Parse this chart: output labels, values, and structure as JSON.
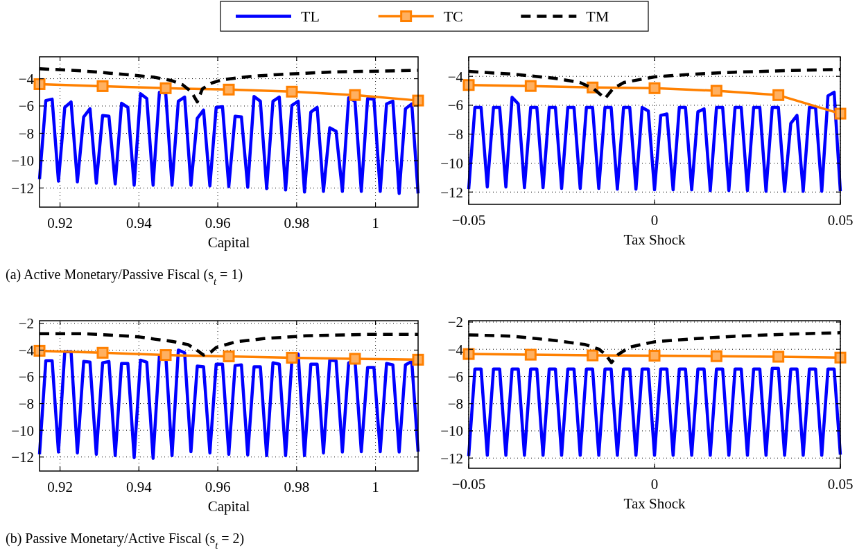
{
  "chart_data": [
    {
      "type": "line",
      "xlabel": "Capital",
      "xlim": [
        0.9148,
        1.0108
      ],
      "ylim": [
        -13.4,
        -2.4
      ],
      "xticks": [
        0.92,
        0.94,
        0.96,
        0.98,
        1
      ],
      "yticks": [
        -12,
        -10,
        -8,
        -6,
        -4
      ],
      "grid": true,
      "legend": "top",
      "annotations": [
        "(a) Active Monetary/Passive Fiscal (s$_{t}$ = 1)"
      ],
      "series": [
        {
          "name": "TL",
          "type": "line",
          "color": "#0000ff",
          "line_style": "solid",
          "marker": "none",
          "x": [
            0.9148,
            0.9164,
            0.918,
            0.9196,
            0.9212,
            0.9228,
            0.9244,
            0.926,
            0.9276,
            0.9292,
            0.9308,
            0.9324,
            0.934,
            0.9356,
            0.9372,
            0.9388,
            0.9404,
            0.942,
            0.9436,
            0.9452,
            0.9468,
            0.9484,
            0.95,
            0.9516,
            0.9532,
            0.9548,
            0.9564,
            0.958,
            0.9596,
            0.9612,
            0.9628,
            0.9644,
            0.966,
            0.9676,
            0.9692,
            0.9708,
            0.9724,
            0.974,
            0.9756,
            0.9772,
            0.9788,
            0.9804,
            0.982,
            0.9836,
            0.9852,
            0.9868,
            0.9884,
            0.99,
            0.9916,
            0.9932,
            0.9948,
            0.9964,
            0.998,
            0.9996,
            1.0012,
            1.0028,
            1.0044,
            1.006,
            1.0076,
            1.0092,
            1.0108
          ],
          "values": [
            -11.35,
            -5.6,
            -5.5,
            -11.5,
            -6.1,
            -5.7,
            -11.55,
            -6.8,
            -6.2,
            -11.65,
            -6.7,
            -6.75,
            -11.7,
            -5.8,
            -6.1,
            -11.8,
            -5.1,
            -5.45,
            -11.8,
            -5.0,
            -5.05,
            -11.8,
            -5.65,
            -5.35,
            -11.8,
            -6.9,
            -6.3,
            -11.85,
            -6.1,
            -6.05,
            -11.9,
            -6.75,
            -6.8,
            -11.95,
            -5.3,
            -5.65,
            -12.05,
            -5.65,
            -5.35,
            -12.15,
            -5.95,
            -5.65,
            -12.3,
            -6.45,
            -6.1,
            -12.25,
            -7.6,
            -7.85,
            -12.25,
            -5.4,
            -5.65,
            -12.25,
            -5.45,
            -5.5,
            -12.25,
            -5.85,
            -5.65,
            -12.4,
            -6.2,
            -5.85,
            -12.4
          ]
        },
        {
          "name": "TC",
          "type": "line",
          "color": "#ff8000",
          "line_style": "solid",
          "marker": "square",
          "x": [
            0.9148,
            0.9308,
            0.9468,
            0.9628,
            0.9788,
            0.9948,
            1.0108
          ],
          "values": [
            -4.4,
            -4.55,
            -4.7,
            -4.8,
            -4.95,
            -5.2,
            -5.6
          ]
        },
        {
          "name": "TM",
          "type": "line",
          "color": "#000000",
          "line_style": "dashed",
          "marker": "none",
          "x": [
            0.9148,
            0.9256,
            0.9327,
            0.9398,
            0.944,
            0.9483,
            0.9511,
            0.9533,
            0.9548,
            0.9561,
            0.9582,
            0.9611,
            0.9681,
            0.9752,
            0.9823,
            0.9894,
            0.9965,
            1.0108
          ],
          "values": [
            -3.27,
            -3.43,
            -3.6,
            -3.78,
            -3.9,
            -4.14,
            -4.45,
            -4.95,
            -5.7,
            -4.75,
            -4.35,
            -4.08,
            -3.84,
            -3.7,
            -3.6,
            -3.51,
            -3.47,
            -3.39
          ]
        }
      ]
    },
    {
      "type": "line",
      "xlabel": "Tax Shock",
      "xlim": [
        -0.05,
        0.05
      ],
      "ylim": [
        -12.85,
        -2.65
      ],
      "xticks": [
        -0.05,
        0,
        0.05
      ],
      "yticks": [
        -12,
        -10,
        -8,
        -6,
        -4
      ],
      "grid": true,
      "series": [
        {
          "type": "line",
          "color": "#0000ff",
          "line_style": "solid",
          "marker": "none",
          "x": [
            -0.05,
            -0.04833,
            -0.04667,
            -0.045,
            -0.04333,
            -0.04167,
            -0.04,
            -0.03833,
            -0.03667,
            -0.035,
            -0.03333,
            -0.03167,
            -0.03,
            -0.02833,
            -0.02667,
            -0.025,
            -0.02333,
            -0.02167,
            -0.02,
            -0.01833,
            -0.01667,
            -0.015,
            -0.01333,
            -0.01167,
            -0.01,
            -0.00833,
            -0.00667,
            -0.005,
            -0.00333,
            -0.00167,
            0,
            0.00167,
            0.00333,
            0.005,
            0.00667,
            0.00833,
            0.01,
            0.01167,
            0.01333,
            0.015,
            0.01667,
            0.01833,
            0.02,
            0.02167,
            0.02333,
            0.025,
            0.02667,
            0.02833,
            0.03,
            0.03167,
            0.03333,
            0.035,
            0.03667,
            0.03833,
            0.04,
            0.04167,
            0.04333,
            0.045,
            0.04667,
            0.04833,
            0.05
          ],
          "values": [
            -11.8,
            -6.15,
            -6.15,
            -11.65,
            -6.15,
            -6.15,
            -11.65,
            -5.45,
            -5.9,
            -11.7,
            -6.15,
            -6.15,
            -11.7,
            -6.15,
            -6.15,
            -11.75,
            -6.15,
            -6.15,
            -11.75,
            -6.15,
            -6.15,
            -11.75,
            -6.15,
            -6.15,
            -11.8,
            -6.15,
            -6.15,
            -11.8,
            -6.15,
            -6.4,
            -11.85,
            -6.7,
            -6.6,
            -11.85,
            -6.15,
            -6.15,
            -11.85,
            -6.45,
            -6.25,
            -11.9,
            -6.15,
            -6.15,
            -11.9,
            -6.15,
            -6.15,
            -11.9,
            -6.15,
            -6.15,
            -11.95,
            -6.15,
            -6.15,
            -11.95,
            -7.25,
            -6.7,
            -11.95,
            -6.15,
            -6.15,
            -11.95,
            -5.35,
            -5.1,
            -11.95
          ]
        },
        {
          "type": "line",
          "color": "#ff8000",
          "line_style": "solid",
          "marker": "square",
          "x": [
            -0.05,
            -0.03333,
            -0.01667,
            0,
            0.01667,
            0.03333,
            0.05
          ],
          "values": [
            -4.6,
            -4.67,
            -4.77,
            -4.82,
            -5.0,
            -5.3,
            -6.58
          ]
        },
        {
          "type": "line",
          "color": "#000000",
          "line_style": "dashed",
          "marker": "none",
          "x": [
            -0.05,
            -0.0381,
            -0.0269,
            -0.0201,
            -0.0164,
            -0.0133,
            -0.0112,
            -0.0082,
            0,
            0.0104,
            0.0216,
            0.0366,
            0.05
          ],
          "values": [
            -3.66,
            -3.85,
            -4.13,
            -4.42,
            -4.86,
            -5.53,
            -4.86,
            -4.42,
            -4.04,
            -3.85,
            -3.71,
            -3.6,
            -3.52
          ]
        }
      ]
    },
    {
      "type": "line",
      "xlabel": "Capital",
      "xlim": [
        0.9148,
        1.0108
      ],
      "ylim": [
        -13.05,
        -1.8
      ],
      "xticks": [
        0.92,
        0.94,
        0.96,
        0.98,
        1
      ],
      "yticks": [
        -12,
        -10,
        -8,
        -6,
        -4,
        -2
      ],
      "grid": true,
      "annotations": [
        "(b) Passive Monetary/Active Fiscal (s$_{t}$ = 2)"
      ],
      "series": [
        {
          "type": "line",
          "color": "#0000ff",
          "line_style": "solid",
          "marker": "none",
          "x": [
            0.9148,
            0.9164,
            0.918,
            0.9196,
            0.9212,
            0.9228,
            0.9244,
            0.926,
            0.9276,
            0.9292,
            0.9308,
            0.9324,
            0.934,
            0.9356,
            0.9372,
            0.9388,
            0.9404,
            0.942,
            0.9436,
            0.9452,
            0.9468,
            0.9484,
            0.95,
            0.9516,
            0.9532,
            0.9548,
            0.9564,
            0.958,
            0.9596,
            0.9612,
            0.9628,
            0.9644,
            0.966,
            0.9676,
            0.9692,
            0.9708,
            0.9724,
            0.974,
            0.9756,
            0.9772,
            0.9788,
            0.9804,
            0.982,
            0.9836,
            0.9852,
            0.9868,
            0.9884,
            0.99,
            0.9916,
            0.9932,
            0.9948,
            0.9964,
            0.998,
            0.9996,
            1.0012,
            1.0028,
            1.0044,
            1.006,
            1.0076,
            1.0092,
            1.0108
          ],
          "values": [
            -11.8,
            -4.8,
            -4.8,
            -11.63,
            -4.12,
            -4.12,
            -11.7,
            -4.85,
            -4.9,
            -11.8,
            -4.95,
            -4.85,
            -11.9,
            -5.0,
            -5.0,
            -12.05,
            -4.75,
            -4.9,
            -12.1,
            -4.43,
            -4.32,
            -11.9,
            -4.0,
            -4.2,
            -11.6,
            -5.2,
            -5.25,
            -11.7,
            -5.05,
            -5.05,
            -11.8,
            -5.15,
            -5.1,
            -11.85,
            -5.25,
            -5.25,
            -11.9,
            -4.95,
            -5.05,
            -11.9,
            -4.75,
            -4.3,
            -11.9,
            -5.05,
            -5.05,
            -11.7,
            -4.75,
            -4.8,
            -11.63,
            -4.95,
            -4.75,
            -11.6,
            -5.3,
            -5.3,
            -11.6,
            -5.0,
            -5.1,
            -11.63,
            -5.1,
            -4.85,
            -11.6
          ]
        },
        {
          "type": "line",
          "color": "#ff8000",
          "line_style": "solid",
          "marker": "square",
          "x": [
            0.9148,
            0.9308,
            0.9468,
            0.9628,
            0.9788,
            0.9948,
            1.0108
          ],
          "values": [
            -4.05,
            -4.2,
            -4.37,
            -4.47,
            -4.57,
            -4.65,
            -4.72
          ]
        },
        {
          "type": "line",
          "color": "#000000",
          "line_style": "dashed",
          "marker": "none",
          "x": [
            0.9148,
            0.9256,
            0.9327,
            0.9398,
            0.944,
            0.9483,
            0.9525,
            0.9547,
            0.9564,
            0.9582,
            0.9596,
            0.9646,
            0.9717,
            0.9823,
            0.9965,
            1.0108
          ],
          "values": [
            -2.77,
            -2.77,
            -2.87,
            -3.0,
            -3.18,
            -3.34,
            -3.59,
            -4.0,
            -4.37,
            -4.16,
            -3.8,
            -3.38,
            -3.14,
            -2.93,
            -2.83,
            -2.83
          ]
        }
      ]
    },
    {
      "type": "line",
      "xlabel": "Tax Shock",
      "xlim": [
        -0.05,
        0.05
      ],
      "ylim": [
        -12.75,
        -1.9
      ],
      "xticks": [
        -0.05,
        0,
        0.05
      ],
      "yticks": [
        -12,
        -10,
        -8,
        -6,
        -4,
        -2
      ],
      "grid": true,
      "series": [
        {
          "type": "line",
          "color": "#0000ff",
          "line_style": "solid",
          "marker": "none",
          "x": [
            -0.05,
            -0.04833,
            -0.04667,
            -0.045,
            -0.04333,
            -0.04167,
            -0.04,
            -0.03833,
            -0.03667,
            -0.035,
            -0.03333,
            -0.03167,
            -0.03,
            -0.02833,
            -0.02667,
            -0.025,
            -0.02333,
            -0.02167,
            -0.02,
            -0.01833,
            -0.01667,
            -0.015,
            -0.01333,
            -0.01167,
            -0.01,
            -0.00833,
            -0.00667,
            -0.005,
            -0.00333,
            -0.00167,
            0,
            0.00167,
            0.00333,
            0.005,
            0.00667,
            0.00833,
            0.01,
            0.01167,
            0.01333,
            0.015,
            0.01667,
            0.01833,
            0.02,
            0.02167,
            0.02333,
            0.025,
            0.02667,
            0.02833,
            0.03,
            0.03167,
            0.03333,
            0.035,
            0.03667,
            0.03833,
            0.04,
            0.04167,
            0.04333,
            0.045,
            0.04667,
            0.04833,
            0.05
          ],
          "values": [
            -11.85,
            -5.45,
            -5.45,
            -11.8,
            -5.45,
            -5.45,
            -11.8,
            -5.45,
            -5.45,
            -11.8,
            -5.45,
            -5.45,
            -11.8,
            -5.45,
            -5.45,
            -11.8,
            -5.45,
            -5.45,
            -11.8,
            -5.45,
            -5.45,
            -11.8,
            -5.45,
            -5.45,
            -11.8,
            -5.45,
            -5.45,
            -11.8,
            -5.45,
            -5.45,
            -11.8,
            -5.45,
            -5.45,
            -11.8,
            -5.45,
            -5.45,
            -11.8,
            -5.45,
            -5.45,
            -11.8,
            -5.45,
            -5.45,
            -11.8,
            -5.45,
            -5.45,
            -11.8,
            -5.45,
            -5.45,
            -11.8,
            -5.4,
            -5.4,
            -11.8,
            -5.45,
            -5.45,
            -11.8,
            -5.45,
            -5.45,
            -11.8,
            -5.45,
            -5.45,
            -11.75
          ]
        },
        {
          "type": "line",
          "color": "#ff8000",
          "line_style": "solid",
          "marker": "square",
          "x": [
            -0.05,
            -0.03333,
            -0.01667,
            0,
            0.01667,
            0.03333,
            0.05
          ],
          "values": [
            -4.35,
            -4.4,
            -4.45,
            -4.47,
            -4.51,
            -4.55,
            -4.61
          ]
        },
        {
          "type": "line",
          "color": "#000000",
          "line_style": "dashed",
          "marker": "none",
          "x": [
            -0.05,
            -0.0381,
            -0.0269,
            -0.0187,
            -0.0149,
            -0.0131,
            -0.0116,
            -0.0097,
            -0.0067,
            0,
            0.0104,
            0.0216,
            0.0366,
            0.05
          ],
          "values": [
            -2.94,
            -3.04,
            -3.35,
            -3.65,
            -4.0,
            -4.41,
            -4.98,
            -4.37,
            -3.84,
            -3.45,
            -3.23,
            -3.04,
            -2.88,
            -2.78
          ]
        }
      ]
    }
  ]
}
